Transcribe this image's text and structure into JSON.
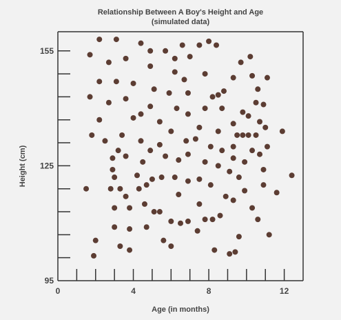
{
  "chart_data": {
    "type": "scatter",
    "title": "Relationship Between A Boy's Height and Age",
    "subtitle": "(simulated data)",
    "xlabel": "Age (in months)",
    "ylabel": "Height (cm)",
    "xlim": [
      0,
      13
    ],
    "ylim": [
      95,
      160
    ],
    "x_ticks": [
      0,
      4,
      8,
      12
    ],
    "x_minor_ticks": [
      1,
      2,
      3,
      4,
      5,
      6,
      7,
      8,
      9,
      10,
      11,
      12
    ],
    "y_ticks": [
      95,
      125,
      155
    ],
    "y_minor_ticks": [
      101,
      107,
      113,
      119,
      125,
      131,
      137,
      143,
      149,
      155
    ],
    "marker_color": "#5c3d33",
    "grid": false,
    "points": [
      {
        "x": 1.5,
        "y": 119
      },
      {
        "x": 1.9,
        "y": 101.5
      },
      {
        "x": 2.0,
        "y": 105.5
      },
      {
        "x": 1.7,
        "y": 154
      },
      {
        "x": 1.7,
        "y": 143
      },
      {
        "x": 1.8,
        "y": 133
      },
      {
        "x": 2.2,
        "y": 158
      },
      {
        "x": 2.2,
        "y": 147
      },
      {
        "x": 2.2,
        "y": 137
      },
      {
        "x": 2.5,
        "y": 131.5
      },
      {
        "x": 2.7,
        "y": 152
      },
      {
        "x": 2.7,
        "y": 141.5
      },
      {
        "x": 2.8,
        "y": 119
      },
      {
        "x": 2.9,
        "y": 127
      },
      {
        "x": 2.9,
        "y": 124
      },
      {
        "x": 3.0,
        "y": 122
      },
      {
        "x": 3.0,
        "y": 114
      },
      {
        "x": 3.0,
        "y": 109
      },
      {
        "x": 3.1,
        "y": 158
      },
      {
        "x": 3.1,
        "y": 147
      },
      {
        "x": 3.2,
        "y": 129
      },
      {
        "x": 3.3,
        "y": 104
      },
      {
        "x": 3.3,
        "y": 119
      },
      {
        "x": 3.4,
        "y": 133
      },
      {
        "x": 3.6,
        "y": 153
      },
      {
        "x": 3.6,
        "y": 142.5
      },
      {
        "x": 3.6,
        "y": 127.5
      },
      {
        "x": 3.6,
        "y": 117
      },
      {
        "x": 3.8,
        "y": 114
      },
      {
        "x": 3.8,
        "y": 108.5
      },
      {
        "x": 3.8,
        "y": 103
      },
      {
        "x": 4.0,
        "y": 146.5
      },
      {
        "x": 4.0,
        "y": 137.5
      },
      {
        "x": 4.2,
        "y": 122.5
      },
      {
        "x": 4.3,
        "y": 119
      },
      {
        "x": 4.4,
        "y": 157
      },
      {
        "x": 4.4,
        "y": 138.5
      },
      {
        "x": 4.4,
        "y": 131.5
      },
      {
        "x": 4.5,
        "y": 126
      },
      {
        "x": 4.6,
        "y": 115
      },
      {
        "x": 4.7,
        "y": 109
      },
      {
        "x": 4.7,
        "y": 120
      },
      {
        "x": 4.9,
        "y": 155
      },
      {
        "x": 4.9,
        "y": 151
      },
      {
        "x": 4.9,
        "y": 140.5
      },
      {
        "x": 4.9,
        "y": 129
      },
      {
        "x": 5.0,
        "y": 121.5
      },
      {
        "x": 5.1,
        "y": 145
      },
      {
        "x": 5.1,
        "y": 113
      },
      {
        "x": 5.4,
        "y": 136.5
      },
      {
        "x": 5.4,
        "y": 130.5
      },
      {
        "x": 5.4,
        "y": 113
      },
      {
        "x": 5.5,
        "y": 122
      },
      {
        "x": 5.6,
        "y": 105.5
      },
      {
        "x": 5.7,
        "y": 155
      },
      {
        "x": 5.7,
        "y": 127.5
      },
      {
        "x": 5.9,
        "y": 144
      },
      {
        "x": 6.0,
        "y": 134
      },
      {
        "x": 6.0,
        "y": 110.5
      },
      {
        "x": 6.0,
        "y": 104
      },
      {
        "x": 6.2,
        "y": 153
      },
      {
        "x": 6.2,
        "y": 149.5
      },
      {
        "x": 6.3,
        "y": 140
      },
      {
        "x": 6.2,
        "y": 122
      },
      {
        "x": 6.4,
        "y": 126.5
      },
      {
        "x": 6.4,
        "y": 117.5
      },
      {
        "x": 6.5,
        "y": 110
      },
      {
        "x": 6.6,
        "y": 156.5
      },
      {
        "x": 6.7,
        "y": 147.5
      },
      {
        "x": 6.8,
        "y": 131.5
      },
      {
        "x": 6.9,
        "y": 121
      },
      {
        "x": 6.9,
        "y": 144
      },
      {
        "x": 6.9,
        "y": 138.5
      },
      {
        "x": 6.9,
        "y": 128
      },
      {
        "x": 6.9,
        "y": 110.5
      },
      {
        "x": 7.0,
        "y": 153.5
      },
      {
        "x": 7.3,
        "y": 132
      },
      {
        "x": 7.4,
        "y": 108
      },
      {
        "x": 7.5,
        "y": 156.5
      },
      {
        "x": 7.5,
        "y": 135
      },
      {
        "x": 7.5,
        "y": 121.5
      },
      {
        "x": 7.5,
        "y": 115
      },
      {
        "x": 7.8,
        "y": 149
      },
      {
        "x": 7.8,
        "y": 140
      },
      {
        "x": 7.8,
        "y": 126
      },
      {
        "x": 7.8,
        "y": 111
      },
      {
        "x": 8.0,
        "y": 157.5
      },
      {
        "x": 8.1,
        "y": 130
      },
      {
        "x": 8.1,
        "y": 120
      },
      {
        "x": 8.2,
        "y": 143
      },
      {
        "x": 8.2,
        "y": 111
      },
      {
        "x": 8.3,
        "y": 103
      },
      {
        "x": 8.4,
        "y": 156.5
      },
      {
        "x": 8.5,
        "y": 143.5
      },
      {
        "x": 8.5,
        "y": 134
      },
      {
        "x": 8.5,
        "y": 125
      },
      {
        "x": 8.6,
        "y": 112
      },
      {
        "x": 8.7,
        "y": 140
      },
      {
        "x": 8.7,
        "y": 129
      },
      {
        "x": 8.8,
        "y": 144.5
      },
      {
        "x": 8.9,
        "y": 117
      },
      {
        "x": 9.1,
        "y": 102
      },
      {
        "x": 9.1,
        "y": 123.5
      },
      {
        "x": 9.3,
        "y": 148
      },
      {
        "x": 9.3,
        "y": 136
      },
      {
        "x": 9.3,
        "y": 130
      },
      {
        "x": 9.3,
        "y": 127
      },
      {
        "x": 9.3,
        "y": 116
      },
      {
        "x": 9.4,
        "y": 102.5
      },
      {
        "x": 9.5,
        "y": 133
      },
      {
        "x": 9.6,
        "y": 122
      },
      {
        "x": 9.6,
        "y": 106.5
      },
      {
        "x": 9.7,
        "y": 152
      },
      {
        "x": 9.8,
        "y": 139
      },
      {
        "x": 9.8,
        "y": 133
      },
      {
        "x": 9.9,
        "y": 126
      },
      {
        "x": 9.9,
        "y": 118.5
      },
      {
        "x": 10.1,
        "y": 138
      },
      {
        "x": 10.1,
        "y": 133
      },
      {
        "x": 10.2,
        "y": 153.5
      },
      {
        "x": 10.3,
        "y": 148.5
      },
      {
        "x": 10.3,
        "y": 129
      },
      {
        "x": 10.3,
        "y": 114
      },
      {
        "x": 10.5,
        "y": 141.5
      },
      {
        "x": 10.5,
        "y": 133
      },
      {
        "x": 10.6,
        "y": 145
      },
      {
        "x": 10.6,
        "y": 111
      },
      {
        "x": 10.7,
        "y": 136.5
      },
      {
        "x": 10.7,
        "y": 128
      },
      {
        "x": 10.9,
        "y": 124
      },
      {
        "x": 10.9,
        "y": 120
      },
      {
        "x": 10.9,
        "y": 141
      },
      {
        "x": 11.0,
        "y": 135
      },
      {
        "x": 11.1,
        "y": 148
      },
      {
        "x": 11.1,
        "y": 130
      },
      {
        "x": 11.2,
        "y": 107
      },
      {
        "x": 11.6,
        "y": 118
      },
      {
        "x": 11.9,
        "y": 134
      },
      {
        "x": 12.4,
        "y": 122.5
      }
    ]
  }
}
